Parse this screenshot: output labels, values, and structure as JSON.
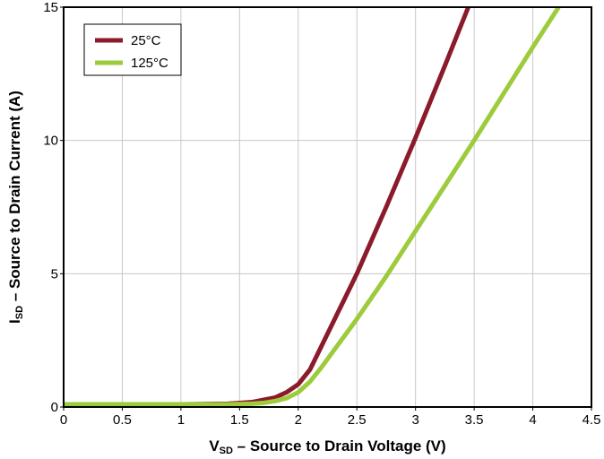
{
  "chart_data": {
    "type": "line",
    "xlabel": {
      "main": "V",
      "sub": "SD",
      "rest": " – Source to Drain Voltage (V)"
    },
    "ylabel": {
      "main": "I",
      "sub": "SD",
      "rest": " – Source to Drain Current (A)"
    },
    "xlim": [
      0,
      4.5
    ],
    "ylim": [
      0,
      15
    ],
    "x_ticks": [
      0,
      0.5,
      1,
      1.5,
      2,
      2.5,
      3,
      3.5,
      4,
      4.5
    ],
    "x_tick_labels": [
      "0",
      "0.5",
      "1",
      "1.5",
      "2",
      "2.5",
      "3",
      "3.5",
      "4",
      "4.5"
    ],
    "y_ticks": [
      0,
      5,
      10,
      15
    ],
    "y_tick_labels": [
      "0",
      "5",
      "10",
      "15"
    ],
    "grid": true,
    "legend_position": "top-left",
    "series": [
      {
        "name": "25°C",
        "color": "#8b1a2b",
        "x": [
          0,
          0.5,
          1.0,
          1.4,
          1.6,
          1.8,
          1.9,
          2.0,
          2.1,
          2.2,
          2.3,
          2.4,
          2.5,
          2.75,
          3.0,
          3.25,
          3.45
        ],
        "y": [
          0.1,
          0.1,
          0.1,
          0.12,
          0.18,
          0.35,
          0.55,
          0.85,
          1.4,
          2.3,
          3.2,
          4.1,
          5.0,
          7.5,
          10.1,
          12.8,
          15.0
        ]
      },
      {
        "name": "125°C",
        "color": "#9ccb3b",
        "x": [
          0,
          0.5,
          1.0,
          1.4,
          1.6,
          1.7,
          1.8,
          1.9,
          2.0,
          2.1,
          2.2,
          2.3,
          2.4,
          2.5,
          2.75,
          3.0,
          3.5,
          4.0,
          4.22
        ],
        "y": [
          0.1,
          0.1,
          0.1,
          0.1,
          0.12,
          0.15,
          0.22,
          0.33,
          0.55,
          0.95,
          1.5,
          2.1,
          2.7,
          3.3,
          4.9,
          6.6,
          10.0,
          13.5,
          15.0
        ]
      }
    ]
  }
}
